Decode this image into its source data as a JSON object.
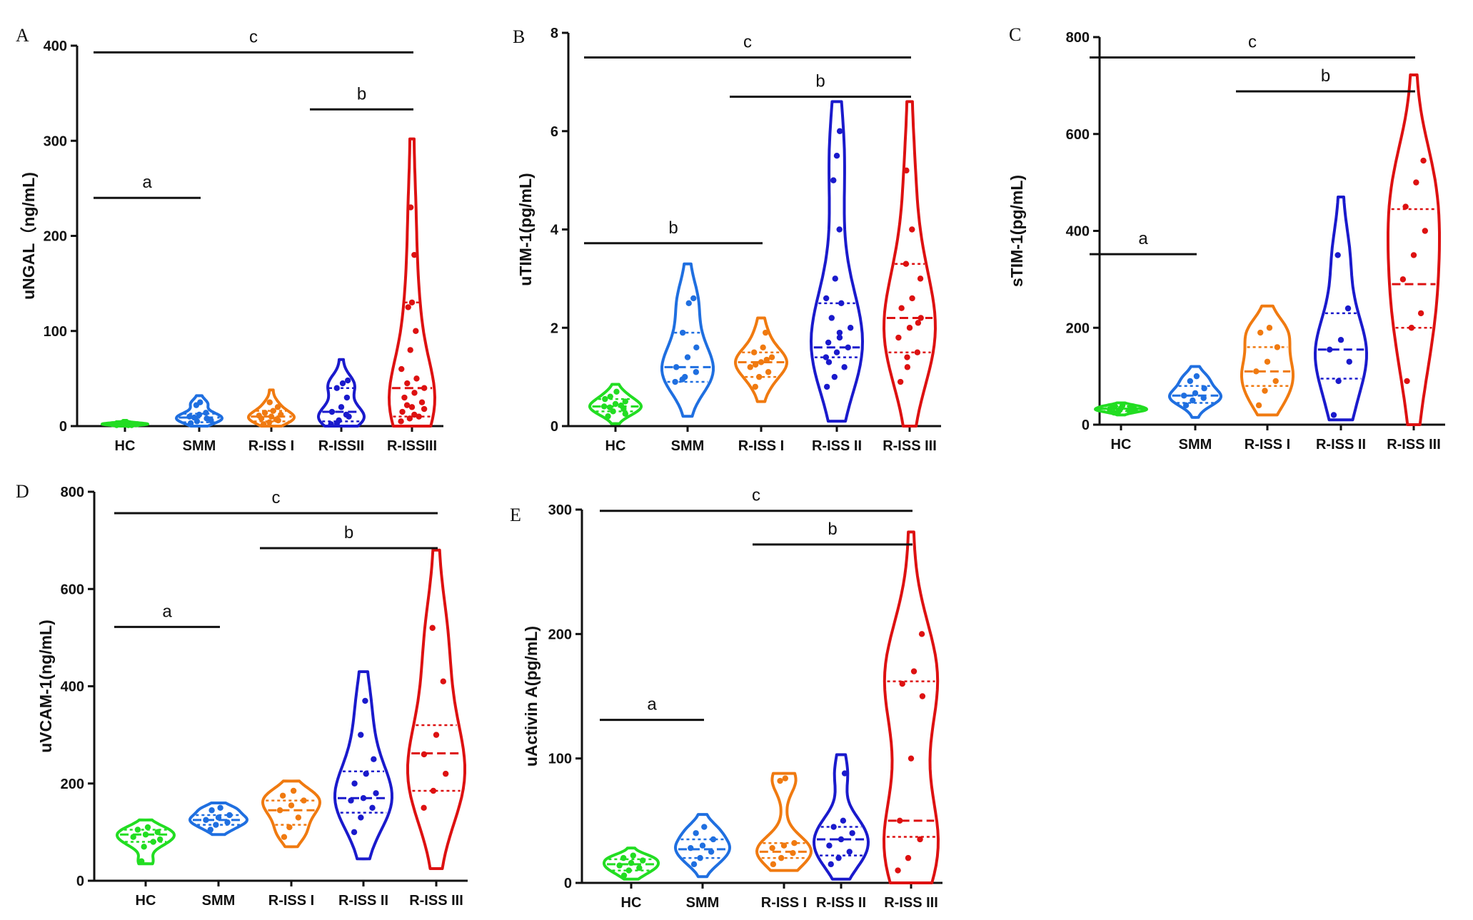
{
  "chart_data": [
    {
      "type": "violin",
      "panel": "A",
      "ylabel": "uNGAL（ng/mL)",
      "ylim": [
        0,
        400
      ],
      "yticks": [
        0,
        100,
        200,
        300,
        400
      ],
      "categories": [
        "HC",
        "SMM",
        "R-ISS I",
        "R-ISSII",
        "R-ISSIII"
      ],
      "series": [
        {
          "category": "HC",
          "color": "#22dd22",
          "min": 0,
          "max": 6,
          "q1": 1,
          "median": 2,
          "q3": 4,
          "points": [
            1,
            2,
            2,
            3,
            2,
            1,
            3,
            4,
            2,
            3,
            1,
            2,
            3,
            2
          ]
        },
        {
          "category": "SMM",
          "color": "#1f6fe0",
          "min": 0,
          "max": 32,
          "q1": 4,
          "median": 9,
          "q3": 13,
          "points": [
            3,
            5,
            8,
            10,
            12,
            14,
            22,
            25,
            6,
            9
          ]
        },
        {
          "category": "R-ISS I",
          "color": "#f07a10",
          "min": 0,
          "max": 38,
          "q1": 5,
          "median": 10,
          "q3": 16,
          "points": [
            2,
            4,
            6,
            8,
            10,
            12,
            14,
            16,
            20,
            25,
            7,
            11
          ]
        },
        {
          "category": "R-ISSII",
          "color": "#1a1acc",
          "min": 0,
          "max": 70,
          "q1": 5,
          "median": 15,
          "q3": 40,
          "points": [
            2,
            6,
            10,
            15,
            20,
            30,
            40,
            45,
            48,
            3,
            12
          ]
        },
        {
          "category": "R-ISSIII",
          "color": "#dd1111",
          "min": 0,
          "max": 302,
          "q1": 10,
          "median": 40,
          "q3": 130,
          "points": [
            5,
            8,
            10,
            15,
            20,
            25,
            30,
            35,
            40,
            45,
            50,
            60,
            80,
            100,
            125,
            130,
            180,
            230,
            12,
            18,
            22
          ]
        }
      ],
      "annotations": [
        {
          "label": "a",
          "from": 0,
          "to": 1,
          "level": 240
        },
        {
          "label": "b",
          "from": 3,
          "to": 4,
          "level": 333
        },
        {
          "label": "c",
          "from": 0,
          "to": 4,
          "level": 393
        }
      ]
    },
    {
      "type": "violin",
      "panel": "B",
      "ylabel": "uTIM-1(pg/mL)",
      "ylim": [
        0,
        8
      ],
      "yticks": [
        0,
        2,
        4,
        6,
        8
      ],
      "categories": [
        "HC",
        "SMM",
        "R-ISS I",
        "R-ISS II",
        "R-ISS III"
      ],
      "series": [
        {
          "category": "HC",
          "color": "#22dd22",
          "min": 0.05,
          "max": 0.85,
          "q1": 0.3,
          "median": 0.4,
          "q3": 0.55,
          "points": [
            0.2,
            0.3,
            0.35,
            0.4,
            0.45,
            0.5,
            0.6,
            0.7,
            0.25,
            0.38,
            0.42,
            0.55
          ]
        },
        {
          "category": "SMM",
          "color": "#1f6fe0",
          "min": 0.2,
          "max": 3.3,
          "q1": 0.9,
          "median": 1.2,
          "q3": 1.9,
          "points": [
            0.9,
            1.0,
            1.1,
            1.2,
            1.4,
            1.6,
            1.9,
            2.5,
            2.6,
            0.95
          ]
        },
        {
          "category": "R-ISS I",
          "color": "#f07a10",
          "min": 0.5,
          "max": 2.2,
          "q1": 1.0,
          "median": 1.3,
          "q3": 1.5,
          "points": [
            0.8,
            1.0,
            1.1,
            1.2,
            1.3,
            1.4,
            1.5,
            1.6,
            1.9,
            1.25,
            1.35
          ]
        },
        {
          "category": "R-ISS II",
          "color": "#1a1acc",
          "min": 0.1,
          "max": 6.6,
          "q1": 1.4,
          "median": 1.6,
          "q3": 2.5,
          "points": [
            0.8,
            1.0,
            1.2,
            1.4,
            1.5,
            1.6,
            1.7,
            1.8,
            2.0,
            2.2,
            2.5,
            2.6,
            3.0,
            4.0,
            5.0,
            5.5,
            6.0,
            1.3,
            1.9
          ]
        },
        {
          "category": "R-ISS III",
          "color": "#dd1111",
          "min": 0.0,
          "max": 6.6,
          "q1": 1.5,
          "median": 2.2,
          "q3": 3.3,
          "points": [
            0.9,
            1.2,
            1.5,
            1.8,
            2.0,
            2.2,
            2.4,
            2.6,
            3.0,
            3.3,
            4.0,
            5.2,
            1.4,
            2.1
          ]
        }
      ],
      "annotations": [
        {
          "label": "b",
          "from": 0,
          "to": 2,
          "level": 3.72
        },
        {
          "label": "b",
          "from": 2,
          "to": 4,
          "level": 6.7
        },
        {
          "label": "c",
          "from": 0,
          "to": 4,
          "level": 7.5
        }
      ]
    },
    {
      "type": "violin",
      "panel": "C",
      "ylabel": "sTIM-1(pg/mL)",
      "ylim": [
        0,
        800
      ],
      "yticks": [
        0,
        200,
        400,
        600,
        800
      ],
      "categories": [
        "HC",
        "SMM",
        "R-ISS I",
        "R-ISS II",
        "R-ISS III"
      ],
      "series": [
        {
          "category": "HC",
          "color": "#22dd22",
          "min": 20,
          "max": 45,
          "q1": 28,
          "median": 33,
          "q3": 38,
          "points": [
            25,
            28,
            30,
            32,
            34,
            36,
            38,
            40,
            31
          ]
        },
        {
          "category": "SMM",
          "color": "#1f6fe0",
          "min": 15,
          "max": 120,
          "q1": 45,
          "median": 60,
          "q3": 80,
          "points": [
            40,
            50,
            55,
            60,
            65,
            75,
            90,
            100
          ]
        },
        {
          "category": "R-ISS I",
          "color": "#f07a10",
          "min": 20,
          "max": 245,
          "q1": 80,
          "median": 110,
          "q3": 160,
          "points": [
            40,
            70,
            90,
            110,
            130,
            160,
            190,
            200
          ]
        },
        {
          "category": "R-ISS II",
          "color": "#1a1acc",
          "min": 10,
          "max": 470,
          "q1": 95,
          "median": 155,
          "q3": 230,
          "points": [
            20,
            90,
            130,
            155,
            175,
            240,
            350
          ]
        },
        {
          "category": "R-ISS III",
          "color": "#dd1111",
          "min": 0,
          "max": 722,
          "q1": 200,
          "median": 290,
          "q3": 445,
          "points": [
            90,
            200,
            230,
            300,
            350,
            400,
            450,
            500,
            545
          ]
        }
      ],
      "annotations": [
        {
          "label": "a",
          "from": 0,
          "to": 1,
          "level": 352
        },
        {
          "label": "b",
          "from": 2,
          "to": 4,
          "level": 688
        },
        {
          "label": "c",
          "from": 0,
          "to": 4,
          "level": 758
        }
      ]
    },
    {
      "type": "violin",
      "panel": "D",
      "ylabel": "uVCAM-1(ng/mL)",
      "ylim": [
        0,
        800
      ],
      "yticks": [
        0,
        200,
        400,
        600,
        800
      ],
      "categories": [
        "HC",
        "SMM",
        "R-ISS I",
        "R-ISS II",
        "R-ISS III"
      ],
      "series": [
        {
          "category": "HC",
          "color": "#22dd22",
          "min": 35,
          "max": 125,
          "q1": 80,
          "median": 95,
          "q3": 105,
          "points": [
            40,
            70,
            80,
            90,
            95,
            100,
            105,
            110,
            85
          ]
        },
        {
          "category": "SMM",
          "color": "#1f6fe0",
          "min": 95,
          "max": 160,
          "q1": 115,
          "median": 125,
          "q3": 135,
          "points": [
            105,
            115,
            120,
            125,
            130,
            135,
            145,
            150
          ]
        },
        {
          "category": "R-ISS I",
          "color": "#f07a10",
          "min": 70,
          "max": 205,
          "q1": 115,
          "median": 145,
          "q3": 165,
          "points": [
            90,
            110,
            130,
            145,
            155,
            165,
            175,
            185
          ]
        },
        {
          "category": "R-ISS II",
          "color": "#1a1acc",
          "min": 45,
          "max": 430,
          "q1": 140,
          "median": 170,
          "q3": 225,
          "points": [
            100,
            130,
            150,
            165,
            170,
            180,
            200,
            220,
            250,
            300,
            370
          ]
        },
        {
          "category": "R-ISS III",
          "color": "#dd1111",
          "min": 25,
          "max": 680,
          "q1": 185,
          "median": 262,
          "q3": 320,
          "points": [
            150,
            185,
            220,
            260,
            300,
            410,
            520
          ]
        }
      ],
      "annotations": [
        {
          "label": "a",
          "from": 0,
          "to": 1,
          "level": 522
        },
        {
          "label": "b",
          "from": 2,
          "to": 4,
          "level": 684
        },
        {
          "label": "c",
          "from": 0,
          "to": 4,
          "level": 756
        }
      ]
    },
    {
      "type": "violin",
      "panel": "E",
      "ylabel": "uActivin A(pg/mL)",
      "ylim": [
        0,
        300
      ],
      "yticks": [
        0,
        100,
        200,
        300
      ],
      "categories": [
        "HC",
        "SMM",
        "R-ISS I",
        "R-ISS II",
        "R-ISS III"
      ],
      "series": [
        {
          "category": "HC",
          "color": "#22dd22",
          "min": 3,
          "max": 28,
          "q1": 10,
          "median": 15,
          "q3": 19,
          "points": [
            6,
            10,
            12,
            14,
            16,
            18,
            20,
            22
          ]
        },
        {
          "category": "SMM",
          "color": "#1f6fe0",
          "min": 5,
          "max": 55,
          "q1": 20,
          "median": 27,
          "q3": 35,
          "points": [
            15,
            20,
            25,
            28,
            30,
            35,
            40,
            45
          ]
        },
        {
          "category": "R-ISS I",
          "color": "#f07a10",
          "min": 10,
          "max": 88,
          "q1": 20,
          "median": 25,
          "q3": 32,
          "points": [
            15,
            20,
            24,
            28,
            30,
            32,
            82,
            84
          ]
        },
        {
          "category": "R-ISS II",
          "color": "#1a1acc",
          "min": 3,
          "max": 103,
          "q1": 22,
          "median": 35,
          "q3": 45,
          "points": [
            15,
            20,
            25,
            30,
            35,
            40,
            45,
            50,
            88
          ]
        },
        {
          "category": "R-ISS III",
          "color": "#dd1111",
          "min": 0,
          "max": 282,
          "q1": 37,
          "median": 50,
          "q3": 162,
          "points": [
            10,
            20,
            35,
            50,
            100,
            150,
            160,
            170,
            200
          ]
        }
      ],
      "annotations": [
        {
          "label": "a",
          "from": 0,
          "to": 1,
          "level": 131
        },
        {
          "label": "b",
          "from": 2,
          "to": 4,
          "level": 272
        },
        {
          "label": "c",
          "from": 0,
          "to": 4,
          "level": 299
        }
      ]
    }
  ]
}
